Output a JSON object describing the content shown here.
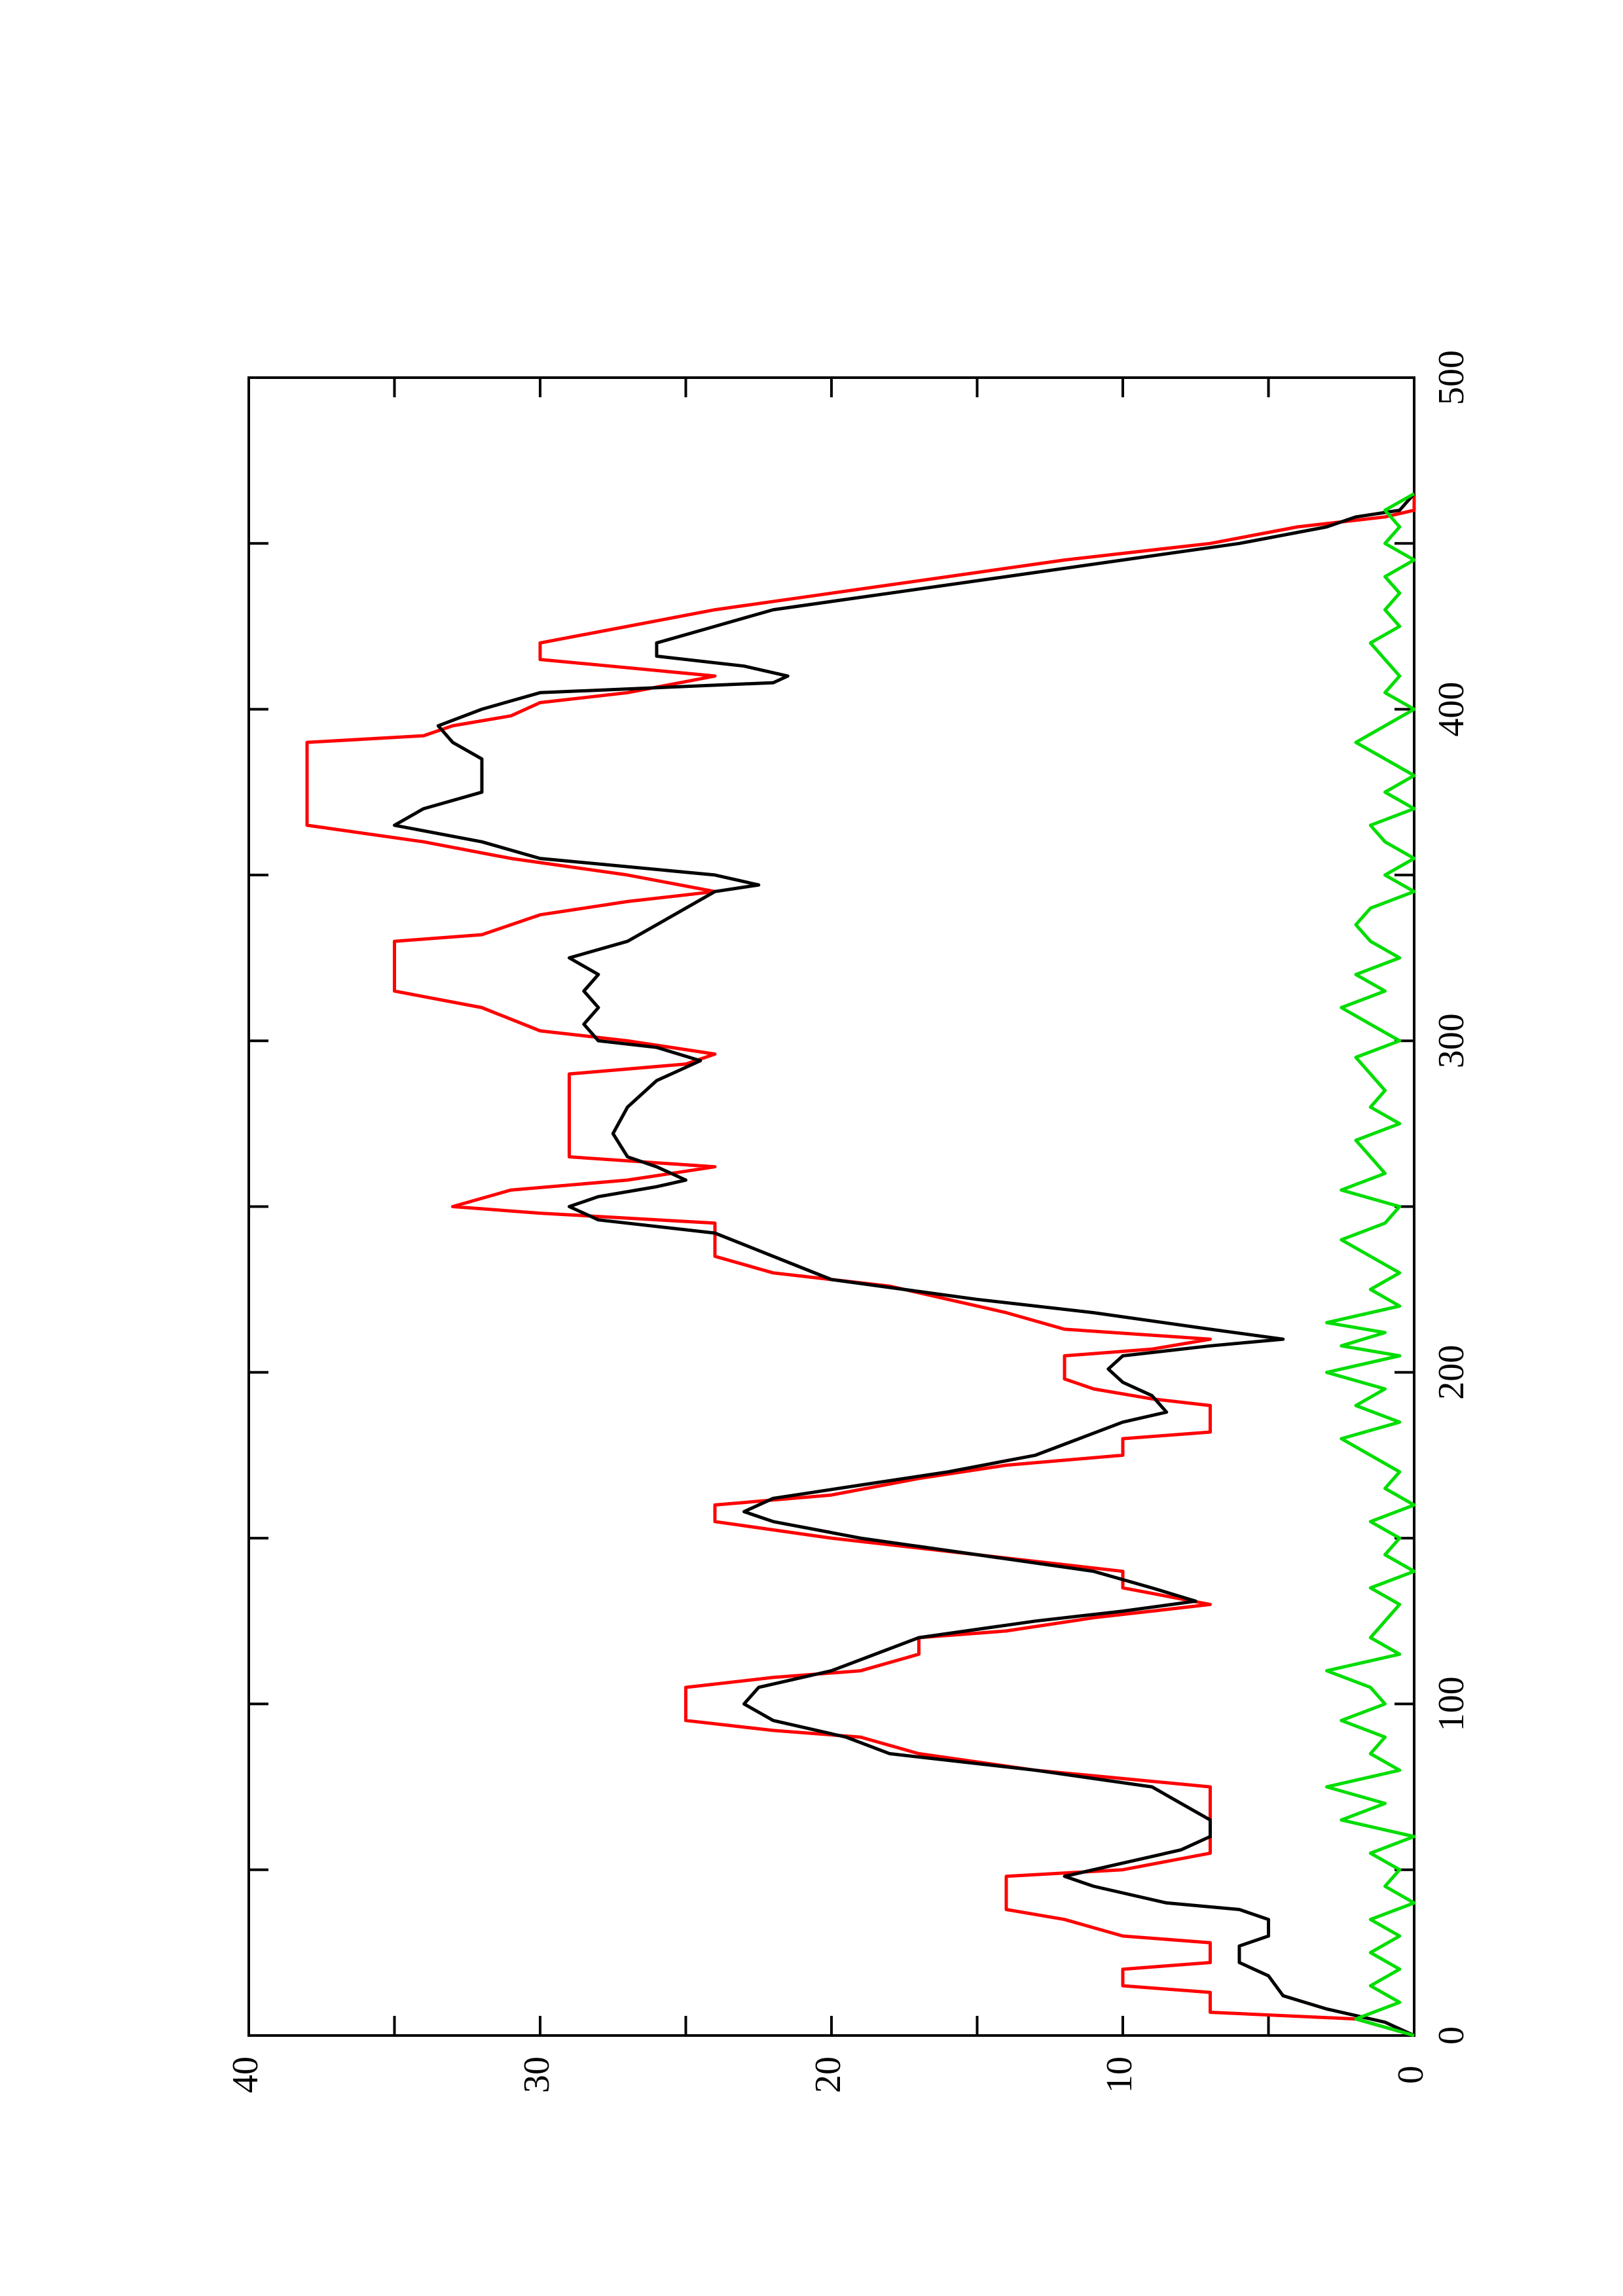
{
  "chart_data": {
    "type": "line",
    "title": "",
    "xlabel": "",
    "ylabel": "",
    "xlim": [
      0,
      500
    ],
    "ylim": [
      0,
      40
    ],
    "x_ticks": [
      0,
      100,
      200,
      300,
      400,
      500
    ],
    "y_ticks": [
      0,
      10,
      20,
      30,
      40
    ],
    "x_minor_ticks": [
      50,
      150,
      250,
      350,
      450
    ],
    "y_minor_ticks": [
      5,
      15,
      25,
      35
    ],
    "x_tick_labels": [
      "0",
      "100",
      "200",
      "300",
      "400",
      "500"
    ],
    "y_tick_labels": [
      "0",
      "10",
      "20",
      "30",
      "40"
    ],
    "orientation": "rotated 90 degrees counter-clockwise",
    "legend": "none",
    "grid": false,
    "series": [
      {
        "color": "#ff0000",
        "points": [
          [
            0,
            0
          ],
          [
            5,
            2
          ],
          [
            7,
            7
          ],
          [
            13,
            7
          ],
          [
            15,
            10
          ],
          [
            20,
            10
          ],
          [
            22,
            7
          ],
          [
            28,
            7
          ],
          [
            30,
            10
          ],
          [
            35,
            12
          ],
          [
            38,
            14
          ],
          [
            48,
            14
          ],
          [
            50,
            10
          ],
          [
            55,
            7
          ],
          [
            75,
            7
          ],
          [
            80,
            13
          ],
          [
            85,
            17
          ],
          [
            90,
            19
          ],
          [
            92,
            22
          ],
          [
            95,
            25
          ],
          [
            105,
            25
          ],
          [
            108,
            22
          ],
          [
            110,
            19
          ],
          [
            115,
            17
          ],
          [
            120,
            17
          ],
          [
            122,
            14
          ],
          [
            126,
            11
          ],
          [
            130,
            7
          ],
          [
            135,
            10
          ],
          [
            140,
            10
          ],
          [
            145,
            15
          ],
          [
            150,
            20
          ],
          [
            155,
            24
          ],
          [
            160,
            24
          ],
          [
            163,
            20
          ],
          [
            168,
            17
          ],
          [
            172,
            14
          ],
          [
            175,
            10
          ],
          [
            180,
            10
          ],
          [
            182,
            7
          ],
          [
            190,
            7
          ],
          [
            192,
            9
          ],
          [
            195,
            11
          ],
          [
            198,
            12
          ],
          [
            205,
            12
          ],
          [
            207,
            9
          ],
          [
            210,
            7
          ],
          [
            213,
            12
          ],
          [
            218,
            14
          ],
          [
            222,
            16
          ],
          [
            226,
            18
          ],
          [
            230,
            22
          ],
          [
            235,
            24
          ],
          [
            245,
            24
          ],
          [
            248,
            30
          ],
          [
            250,
            33
          ],
          [
            255,
            31
          ],
          [
            258,
            27
          ],
          [
            262,
            24
          ],
          [
            265,
            29
          ],
          [
            290,
            29
          ],
          [
            293,
            25
          ],
          [
            296,
            24
          ],
          [
            300,
            27
          ],
          [
            303,
            30
          ],
          [
            310,
            32
          ],
          [
            315,
            35
          ],
          [
            330,
            35
          ],
          [
            332,
            32
          ],
          [
            338,
            30
          ],
          [
            342,
            27
          ],
          [
            345,
            24
          ],
          [
            350,
            27
          ],
          [
            355,
            31
          ],
          [
            360,
            34
          ],
          [
            365,
            38
          ],
          [
            390,
            38
          ],
          [
            392,
            34
          ],
          [
            395,
            33
          ],
          [
            398,
            31
          ],
          [
            402,
            30
          ],
          [
            405,
            27
          ],
          [
            410,
            24
          ],
          [
            415,
            30
          ],
          [
            420,
            30
          ],
          [
            425,
            27
          ],
          [
            430,
            24
          ],
          [
            435,
            20
          ],
          [
            440,
            16
          ],
          [
            445,
            12
          ],
          [
            450,
            7
          ],
          [
            455,
            4
          ],
          [
            458,
            1
          ],
          [
            460,
            0
          ],
          [
            465,
            0
          ]
        ]
      },
      {
        "color": "#000000",
        "points": [
          [
            0,
            0
          ],
          [
            4,
            1
          ],
          [
            8,
            3
          ],
          [
            12,
            4.5
          ],
          [
            18,
            5
          ],
          [
            22,
            6
          ],
          [
            27,
            6
          ],
          [
            30,
            5
          ],
          [
            35,
            5
          ],
          [
            38,
            6
          ],
          [
            40,
            8.5
          ],
          [
            45,
            11
          ],
          [
            48,
            12
          ],
          [
            52,
            10
          ],
          [
            56,
            8
          ],
          [
            60,
            7
          ],
          [
            65,
            7
          ],
          [
            70,
            8
          ],
          [
            75,
            9
          ],
          [
            80,
            13
          ],
          [
            85,
            18
          ],
          [
            90,
            19.5
          ],
          [
            95,
            22
          ],
          [
            100,
            23
          ],
          [
            105,
            22.5
          ],
          [
            110,
            20
          ],
          [
            115,
            18.5
          ],
          [
            120,
            17
          ],
          [
            125,
            13
          ],
          [
            128,
            10
          ],
          [
            131,
            7.5
          ],
          [
            135,
            9
          ],
          [
            140,
            11
          ],
          [
            145,
            15
          ],
          [
            150,
            19
          ],
          [
            155,
            22
          ],
          [
            158,
            23
          ],
          [
            162,
            22
          ],
          [
            166,
            19
          ],
          [
            170,
            16
          ],
          [
            175,
            13
          ],
          [
            180,
            11.5
          ],
          [
            185,
            10
          ],
          [
            188,
            8.5
          ],
          [
            193,
            9
          ],
          [
            197,
            10
          ],
          [
            201,
            10.5
          ],
          [
            205,
            10
          ],
          [
            208,
            7
          ],
          [
            210,
            4.5
          ],
          [
            213,
            7
          ],
          [
            218,
            11
          ],
          [
            222,
            15
          ],
          [
            228,
            20
          ],
          [
            235,
            22
          ],
          [
            242,
            24
          ],
          [
            246,
            28
          ],
          [
            250,
            29
          ],
          [
            253,
            28
          ],
          [
            256,
            26
          ],
          [
            258,
            25
          ],
          [
            262,
            26
          ],
          [
            265,
            27
          ],
          [
            272,
            27.5
          ],
          [
            280,
            27
          ],
          [
            288,
            26
          ],
          [
            294,
            24.5
          ],
          [
            298,
            26
          ],
          [
            300,
            28
          ],
          [
            305,
            28.5
          ],
          [
            310,
            28
          ],
          [
            315,
            28.5
          ],
          [
            320,
            28
          ],
          [
            325,
            29
          ],
          [
            330,
            27
          ],
          [
            335,
            26
          ],
          [
            340,
            25
          ],
          [
            345,
            24
          ],
          [
            347,
            22.5
          ],
          [
            350,
            24
          ],
          [
            355,
            30
          ],
          [
            360,
            32
          ],
          [
            365,
            35
          ],
          [
            370,
            34
          ],
          [
            375,
            32
          ],
          [
            385,
            32
          ],
          [
            390,
            33
          ],
          [
            395,
            33.5
          ],
          [
            400,
            32
          ],
          [
            405,
            30
          ],
          [
            408,
            22
          ],
          [
            410,
            21.5
          ],
          [
            413,
            23
          ],
          [
            416,
            26
          ],
          [
            420,
            26
          ],
          [
            425,
            24
          ],
          [
            430,
            22
          ],
          [
            435,
            18
          ],
          [
            440,
            14
          ],
          [
            445,
            10
          ],
          [
            450,
            6
          ],
          [
            455,
            3
          ],
          [
            458,
            2
          ],
          [
            460,
            0.5
          ],
          [
            465,
            0
          ]
        ]
      },
      {
        "color": "#00dd00",
        "points": [
          [
            0,
            0
          ],
          [
            5,
            2
          ],
          [
            10,
            0.5
          ],
          [
            15,
            1.5
          ],
          [
            20,
            0.5
          ],
          [
            25,
            1.5
          ],
          [
            30,
            0.5
          ],
          [
            35,
            1.5
          ],
          [
            40,
            0
          ],
          [
            45,
            1
          ],
          [
            50,
            0.5
          ],
          [
            55,
            1.5
          ],
          [
            60,
            0
          ],
          [
            65,
            2.5
          ],
          [
            70,
            1
          ],
          [
            75,
            3
          ],
          [
            80,
            0.5
          ],
          [
            85,
            1.5
          ],
          [
            90,
            1
          ],
          [
            95,
            2.5
          ],
          [
            100,
            1
          ],
          [
            105,
            1.5
          ],
          [
            110,
            3
          ],
          [
            115,
            0.5
          ],
          [
            120,
            1.5
          ],
          [
            125,
            1
          ],
          [
            130,
            0.5
          ],
          [
            135,
            1.5
          ],
          [
            140,
            0
          ],
          [
            145,
            1
          ],
          [
            150,
            0.5
          ],
          [
            155,
            1.5
          ],
          [
            160,
            0
          ],
          [
            165,
            1
          ],
          [
            170,
            0.5
          ],
          [
            175,
            1.5
          ],
          [
            180,
            2.5
          ],
          [
            185,
            0.5
          ],
          [
            190,
            2
          ],
          [
            195,
            1
          ],
          [
            200,
            3
          ],
          [
            205,
            0.5
          ],
          [
            208,
            2.5
          ],
          [
            212,
            1
          ],
          [
            215,
            3
          ],
          [
            220,
            0.5
          ],
          [
            225,
            1.5
          ],
          [
            230,
            0.5
          ],
          [
            235,
            1.5
          ],
          [
            240,
            2.5
          ],
          [
            245,
            1
          ],
          [
            250,
            0.5
          ],
          [
            255,
            2.5
          ],
          [
            260,
            1
          ],
          [
            265,
            1.5
          ],
          [
            270,
            2
          ],
          [
            275,
            0.5
          ],
          [
            280,
            1.5
          ],
          [
            285,
            1
          ],
          [
            290,
            1.5
          ],
          [
            295,
            2
          ],
          [
            300,
            0.5
          ],
          [
            305,
            1.5
          ],
          [
            310,
            2.5
          ],
          [
            315,
            1
          ],
          [
            320,
            2
          ],
          [
            325,
            0.5
          ],
          [
            330,
            1.5
          ],
          [
            335,
            2
          ],
          [
            340,
            1.5
          ],
          [
            345,
            0
          ],
          [
            350,
            1
          ],
          [
            355,
            0
          ],
          [
            360,
            1
          ],
          [
            365,
            1.5
          ],
          [
            370,
            0
          ],
          [
            375,
            1
          ],
          [
            380,
            0
          ],
          [
            385,
            1
          ],
          [
            390,
            2
          ],
          [
            395,
            1
          ],
          [
            400,
            0
          ],
          [
            405,
            1
          ],
          [
            410,
            0.5
          ],
          [
            415,
            1
          ],
          [
            420,
            1.5
          ],
          [
            425,
            0.5
          ],
          [
            430,
            1
          ],
          [
            435,
            0.5
          ],
          [
            440,
            1
          ],
          [
            445,
            0
          ],
          [
            450,
            1
          ],
          [
            455,
            0.5
          ],
          [
            460,
            1
          ],
          [
            465,
            0
          ]
        ]
      }
    ]
  }
}
